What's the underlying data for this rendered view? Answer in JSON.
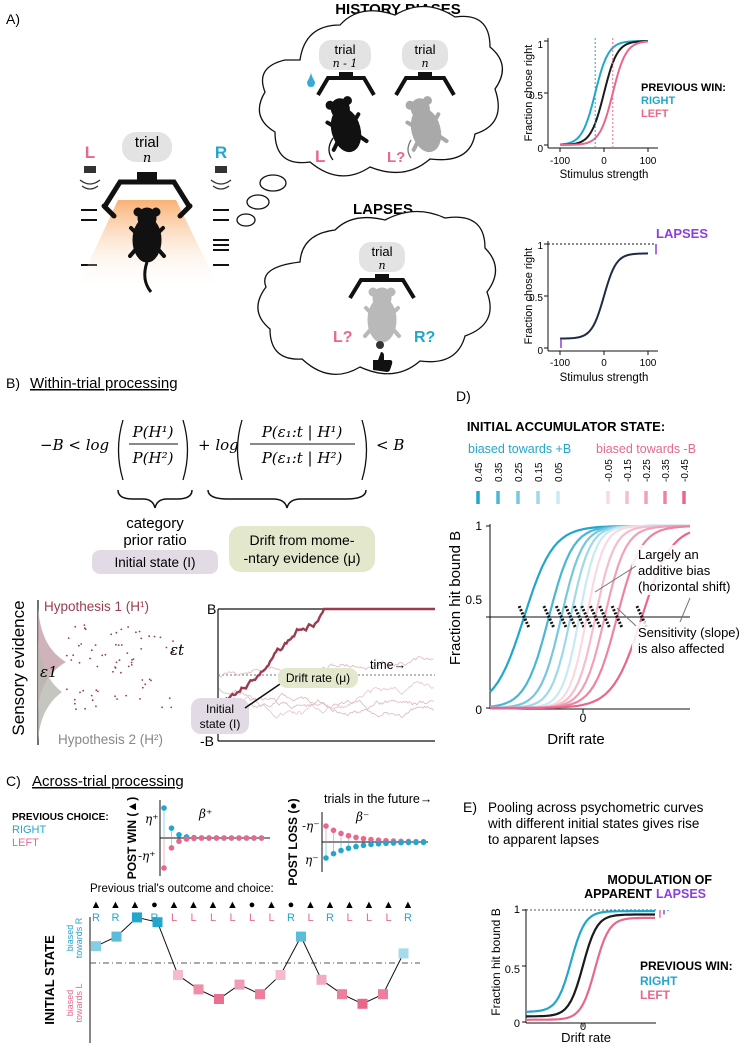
{
  "colors": {
    "right": "#23a6cc",
    "left": "#e8688c",
    "black": "#1b1b1b",
    "navy": "#1f2a44",
    "purple": "#8b3fe0",
    "prior_box": "#e2dbe5",
    "drift_box": "#e3e8cc",
    "trace": "#9a3c4f",
    "gray_pill": "#e3e3e3",
    "water": "#39a9dc"
  },
  "panel_a": {
    "label": "A)",
    "trial_word": "trial",
    "trial_n": "n",
    "port_left": "L",
    "port_right": "R",
    "history_title": "HISTORY BIASES",
    "prev_trial_word": "trial",
    "prev_trial_n": "n - 1",
    "curr_trial_word": "trial",
    "curr_trial_n": "n",
    "l_choice": "L",
    "l_question": "L?",
    "lapses_title": "LAPSES",
    "lapse_trial_word": "trial",
    "lapse_trial_n": "n",
    "lapse_l": "L?",
    "lapse_r": "R?",
    "legend_title": "PREVIOUS WIN:",
    "legend_right": "RIGHT",
    "legend_left": "LEFT",
    "lapses_label": "LAPSES",
    "chart_ylabel": "Fraction chose right",
    "chart_xlabel": "Stimulus strength",
    "x_ticks": [
      "-100",
      "0",
      "100"
    ],
    "y_ticks": [
      "0",
      "0.5",
      "1"
    ]
  },
  "panel_b": {
    "label": "B)",
    "title": "Within-trial processing",
    "equation": {
      "lhs": "−B < log",
      "num1": "P(H¹)",
      "den1": "P(H²)",
      "plus": "+ log",
      "num2": "P(ε₁:t | H¹)",
      "den2": "P(ε₁:t | H²)",
      "rhs": "< B"
    },
    "prior_caption_1": "category",
    "prior_caption_2": "prior ratio",
    "initial_state_box": "Initial state (I)",
    "drift_box_1": "Drift from mome-",
    "drift_box_2": "-ntary evidence (μ)",
    "sensory_evidence": "Sensory evidence",
    "hyp1": "Hypothesis 1 (H¹)",
    "hyp2": "Hypothesis 2 (H²)",
    "eps_t": "εt",
    "eps_1": "ε1",
    "bound_top": "B",
    "bound_bottom": "-B",
    "time_label": "time→",
    "initial_state_1": "Initial",
    "initial_state_2": "state (I)",
    "drift_rate_box": "Drift rate (μ)"
  },
  "panel_c": {
    "label": "C)",
    "title": "Across-trial processing",
    "prev_choice_title": "PREVIOUS CHOICE:",
    "right_label": "RIGHT",
    "left_label": "LEFT",
    "post_win": "POST WIN (▲)",
    "post_loss": "POST LOSS (●)",
    "eta_plus_top": "η⁺",
    "eta_plus_bottom": "-η⁺",
    "eta_minus_top": "-η⁻",
    "eta_minus_bottom": "η⁻",
    "beta_plus": "β⁺",
    "beta_minus": "β⁻",
    "future_label": "trials in the future→",
    "outcome_title": "Previous trial's outcome and choice:",
    "outcomes": [
      "▲",
      "▲",
      "▲",
      "●",
      "▲",
      "▲",
      "▲",
      "▲",
      "●",
      "▲",
      "●",
      "▲",
      "▲",
      "▲",
      "▲",
      "▲",
      "▲"
    ],
    "choices": [
      "R",
      "R",
      "R",
      "R",
      "L",
      "L",
      "L",
      "L",
      "L",
      "L",
      "R",
      "L",
      "R",
      "L",
      "L",
      "L",
      "R"
    ],
    "initial_state_label": "INITIAL STATE",
    "biased_r_1": "biased",
    "biased_r_2": "towards R",
    "biased_l_1": "biased",
    "biased_l_2": "towards L",
    "state_levels": [
      0.35,
      0.55,
      0.95,
      0.85,
      -0.25,
      -0.55,
      -0.75,
      -0.45,
      -0.65,
      -0.25,
      0.55,
      -0.35,
      -0.65,
      -0.85,
      -0.65,
      0.2
    ]
  },
  "panel_d": {
    "label": "D)",
    "title": "INITIAL ACCUMULATOR STATE:",
    "group_plus": "biased towards +B",
    "group_minus": "biased towards -B",
    "state_labels": [
      "0.45",
      "0.35",
      "0.25",
      "0.15",
      "0.05",
      "-0.05",
      "-0.15",
      "-0.25",
      "-0.35",
      "-0.45"
    ],
    "state_values": [
      0.45,
      0.35,
      0.25,
      0.15,
      0.05,
      -0.05,
      -0.15,
      -0.25,
      -0.35,
      -0.45
    ],
    "annotation_1": "Largely an",
    "annotation_2": "additive bias",
    "annotation_3": "(horizontal shift)",
    "annotation_4": "Sensitivity (slope)",
    "annotation_5": "is also affected",
    "ylabel": "Fraction hit bound B",
    "xlabel": "Drift rate",
    "y_ticks": [
      "0",
      "0.5",
      "1"
    ],
    "x_ticks": [
      "0"
    ]
  },
  "panel_e": {
    "label": "E)",
    "title_1": "Pooling across psychometric curves",
    "title_2": "with  different initial states gives rise",
    "title_3": "to apparent lapses",
    "mod_1": "MODULATION OF",
    "mod_2": "APPARENT",
    "mod_3": "LAPSES",
    "legend_title": "PREVIOUS WIN:",
    "legend_right": "RIGHT",
    "legend_left": "LEFT",
    "ylabel": "Fraction hit bound B",
    "xlabel": "Drift rate",
    "y_ticks": [
      "0",
      "0.5",
      "1"
    ],
    "x_ticks": [
      "0"
    ]
  },
  "chart_data": [
    {
      "type": "line",
      "title": "",
      "xlabel": "Stimulus strength",
      "ylabel": "Fraction chose right",
      "xlim": [
        -100,
        100
      ],
      "ylim": [
        0,
        1
      ],
      "series": [
        {
          "name": "RIGHT",
          "x": [
            -100,
            -50,
            -20,
            0,
            20,
            50,
            100
          ],
          "y": [
            0.02,
            0.18,
            0.52,
            0.8,
            0.93,
            0.99,
            1.0
          ]
        },
        {
          "name": "",
          "x": [
            -100,
            -50,
            -20,
            0,
            20,
            50,
            100
          ],
          "y": [
            0.01,
            0.06,
            0.23,
            0.5,
            0.77,
            0.94,
            0.99
          ]
        },
        {
          "name": "LEFT",
          "x": [
            -100,
            -50,
            -20,
            0,
            20,
            50,
            100
          ],
          "y": [
            0.0,
            0.01,
            0.07,
            0.2,
            0.48,
            0.82,
            0.98
          ]
        }
      ]
    },
    {
      "type": "line",
      "title": "",
      "xlabel": "Stimulus strength",
      "ylabel": "Fraction chose right",
      "xlim": [
        -100,
        100
      ],
      "ylim": [
        0,
        1
      ],
      "series": [
        {
          "name": "",
          "x": [
            -100,
            -50,
            -20,
            0,
            20,
            50,
            100
          ],
          "y": [
            0.09,
            0.14,
            0.3,
            0.5,
            0.7,
            0.86,
            0.91
          ]
        }
      ]
    },
    {
      "type": "line",
      "title": "",
      "xlabel": "Drift rate",
      "ylabel": "Fraction hit bound B",
      "ylim": [
        0,
        1
      ],
      "series": [
        {
          "name": "0.45",
          "shift": -0.95
        },
        {
          "name": "0.35",
          "shift": -0.55
        },
        {
          "name": "0.25",
          "shift": -0.35
        },
        {
          "name": "0.15",
          "shift": -0.2
        },
        {
          "name": "0.05",
          "shift": -0.06
        },
        {
          "name": "-0.05",
          "shift": 0.06
        },
        {
          "name": "-0.15",
          "shift": 0.2
        },
        {
          "name": "-0.25",
          "shift": 0.35
        },
        {
          "name": "-0.35",
          "shift": 0.55
        },
        {
          "name": "-0.45",
          "shift": 0.95
        }
      ]
    },
    {
      "type": "line",
      "title": "",
      "xlabel": "Drift rate",
      "ylabel": "Fraction hit bound B",
      "ylim": [
        0,
        1
      ],
      "series": [
        {
          "name": "RIGHT",
          "lower": 0.09,
          "upper": 0.99
        },
        {
          "name": "",
          "lower": 0.05,
          "upper": 0.96
        },
        {
          "name": "LEFT",
          "lower": 0.02,
          "upper": 0.93
        }
      ]
    }
  ]
}
